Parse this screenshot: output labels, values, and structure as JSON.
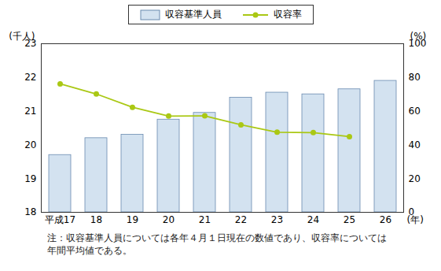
{
  "chart_data": {
    "type": "bar",
    "categories": [
      "平成17",
      "18",
      "19",
      "20",
      "21",
      "22",
      "23",
      "24",
      "25",
      "26"
    ],
    "series": [
      {
        "name": "収容基準人員",
        "type": "bar",
        "color": "#d3e2f0",
        "values": [
          19.7,
          20.2,
          20.3,
          20.75,
          20.95,
          21.4,
          21.55,
          21.5,
          21.65,
          21.9
        ]
      },
      {
        "name": "収容率",
        "type": "line",
        "axis": "y2",
        "color": "#aac814",
        "marker": "circle",
        "values": [
          76.2,
          70.2,
          62.3,
          57.1,
          57.2,
          51.9,
          47.5,
          47.3,
          44.9,
          null
        ]
      }
    ],
    "y_label": "(千人)",
    "y2_label": "(%)",
    "x_label": "(年)",
    "ylim": [
      18,
      23
    ],
    "yticks": [
      18,
      19,
      20,
      21,
      22,
      23
    ],
    "y2lim": [
      0,
      100
    ],
    "y2ticks": [
      0,
      20,
      40,
      60,
      80,
      100
    ],
    "grid": false,
    "legend": "top",
    "note": "注：収容基準人員については各年４月１日現在の数値であり、収容率については年間平均値である。"
  }
}
